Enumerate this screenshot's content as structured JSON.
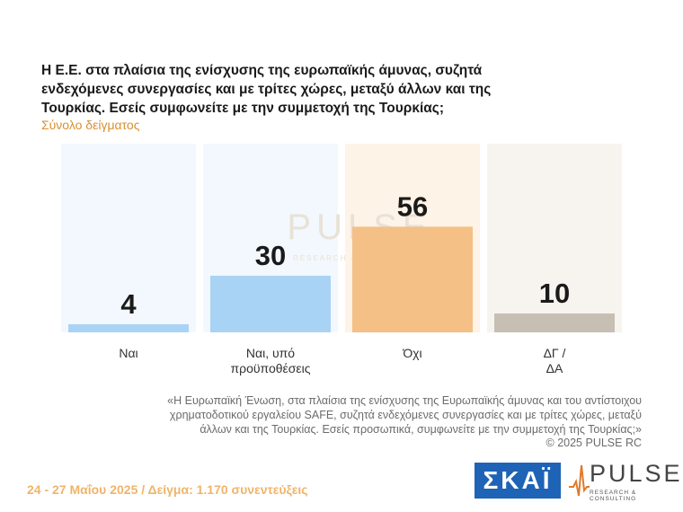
{
  "header": {
    "title": "Η Ε.Ε. στα πλαίσια της ενίσχυσης της ευρωπαϊκής άμυνας, συζητά ενδεχόμενες συνεργασίες και με τρίτες χώρες, μεταξύ άλλων και της Τουρκίας. Εσείς συμφωνείτε με την συμμετοχή της Τουρκίας;",
    "subtitle": "Σύνολο δείγματος"
  },
  "chart_data": {
    "type": "bar",
    "categories": [
      "Ναι",
      "Ναι, υπό|προϋποθέσεις",
      "Όχι",
      "ΔΓ /|ΔΑ"
    ],
    "category_lines": [
      [
        "Ναι"
      ],
      [
        "Ναι, υπό",
        "προϋποθέσεις"
      ],
      [
        "Όχι"
      ],
      [
        "ΔΓ /",
        "ΔΑ"
      ]
    ],
    "values": [
      4,
      30,
      56,
      10
    ],
    "ylim": [
      0,
      100
    ],
    "colors": [
      "#a9d3f5",
      "#a9d3f5",
      "#f4c086",
      "#c7bfb3"
    ],
    "panel_colors": [
      "#f2f8fd",
      "#f2f8fd",
      "#fdf3e7",
      "#f7f4ef"
    ],
    "grid": false,
    "legend": "none"
  },
  "watermark": {
    "main": "PULSE",
    "sub": "RESEARCH & CONSULTING"
  },
  "question_text": "«Η Ευρωπαϊκή Ένωση, στα πλαίσια της ενίσχυσης της Ευρωπαϊκής άμυνας και του αντίστοιχου χρηματοδοτικού εργαλείου SAFE, συζητά ενδεχόμενες συνεργασίες και με τρίτες χώρες, μεταξύ άλλων και της Τουρκίας. Εσείς προσωπικά, συμφωνείτε με την συμμετοχή της Τουρκίας;»",
  "copyright": "© 2025 PULSE RC",
  "footer": "24 - 27 Μαΐου 2025 / Δείγμα: 1.170 συνεντεύξεις",
  "logos": {
    "skai": "ΣΚΑΪ",
    "pulse": "PULSE",
    "pulse_sub": "RESEARCH & CONSULTING"
  }
}
